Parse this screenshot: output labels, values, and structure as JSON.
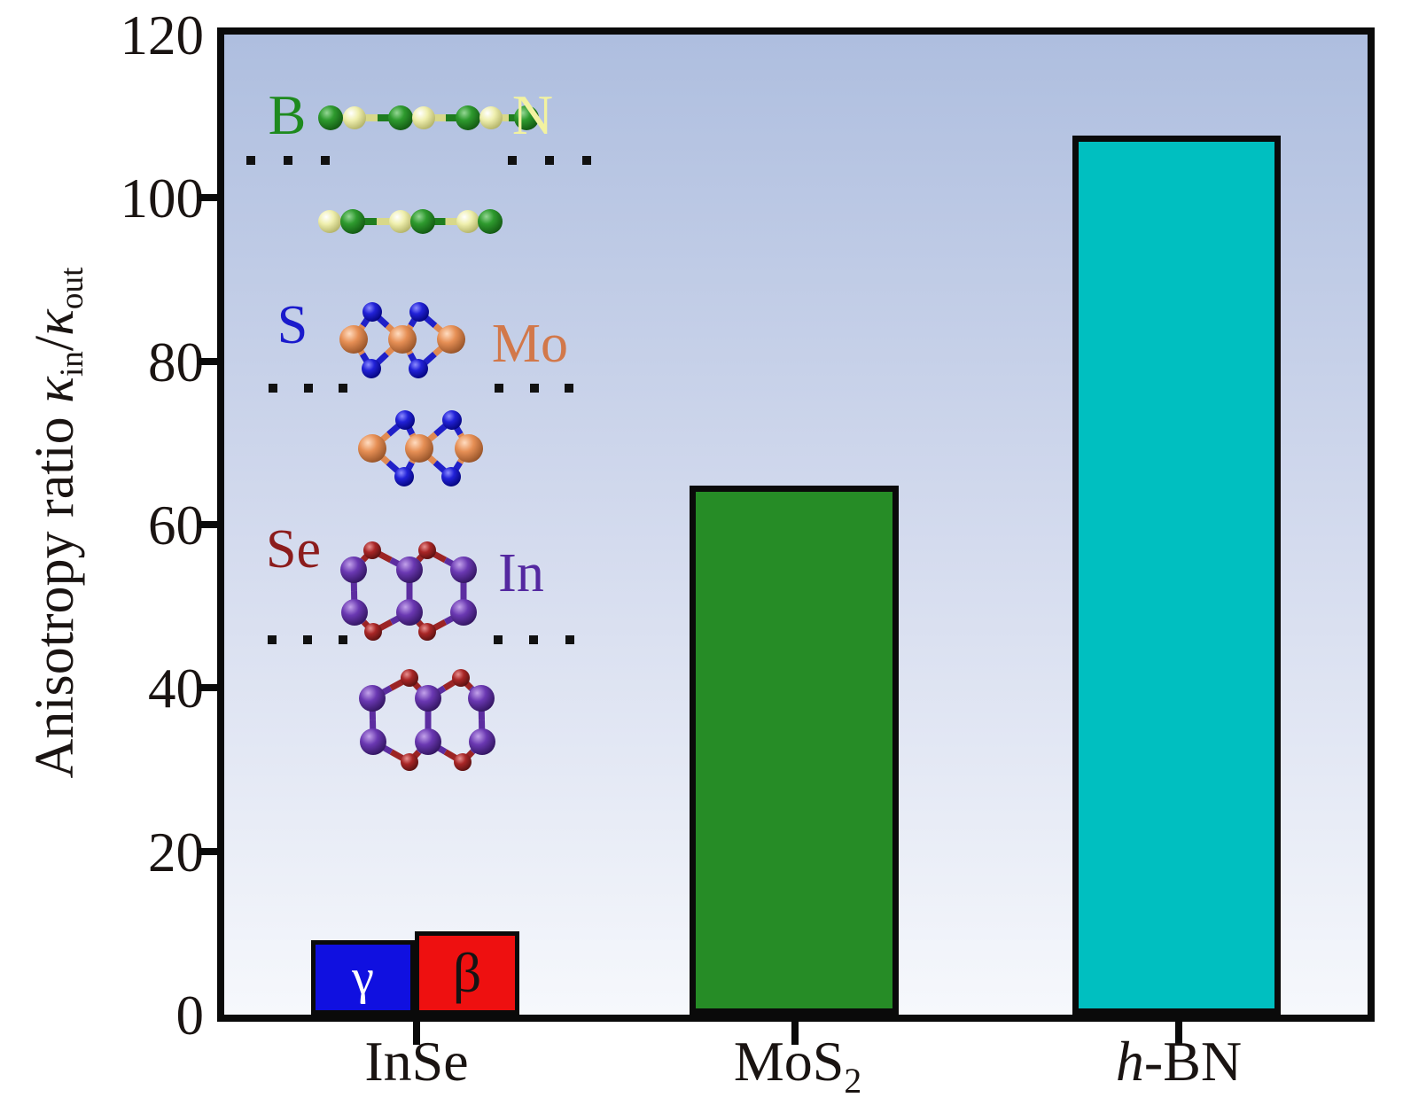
{
  "page": {
    "background": "#ffffff"
  },
  "y_axis": {
    "title": "Anisotropy ratio",
    "kappa": "κ",
    "sub_in": "in",
    "slash": "/",
    "sub_out": "out",
    "tick_labels": [
      "0",
      "20",
      "40",
      "60",
      "80",
      "100",
      "120"
    ]
  },
  "x_axis": {
    "labels": [
      {
        "text": "InSe"
      },
      {
        "main": "MoS",
        "sub": "2"
      },
      {
        "italic": "h",
        "rest": "-BN"
      }
    ]
  },
  "chart_data": {
    "type": "bar",
    "title": "",
    "xlabel": "",
    "ylabel": "Anisotropy ratio κ_in/κ_out",
    "ylim": [
      0,
      120
    ],
    "yticks": [
      0,
      20,
      40,
      60,
      80,
      100,
      120
    ],
    "grid": false,
    "legend": "none",
    "categories": [
      "InSe",
      "MoS2",
      "h-BN"
    ],
    "bars": [
      {
        "category": "InSe",
        "series": "γ-InSe",
        "label": "γ",
        "value": 9.1,
        "color": "#1010e0",
        "label_color": "#ffffff"
      },
      {
        "category": "InSe",
        "series": "β-InSe",
        "label": "β",
        "value": 10.2,
        "color": "#ee1010",
        "label_color": "#141414"
      },
      {
        "category": "MoS2",
        "series": "MoS2",
        "label": "",
        "value": 64.8,
        "color": "#268c26",
        "label_color": ""
      },
      {
        "category": "h-BN",
        "series": "h-BN",
        "label": "",
        "value": 107.6,
        "color": "#00bfc0",
        "label_color": ""
      }
    ],
    "background_gradient": [
      "#aebedf",
      "#f6f8fc"
    ],
    "axis_color": "#0a0a0a"
  },
  "insets": {
    "hbn": {
      "label_b": "B",
      "label_n": "N",
      "b_text_color": "#1e8a1e",
      "n_text_color": "#f2f2a0",
      "b_atom_color": "#1f7d1f",
      "n_atom_color": "#d8d88a"
    },
    "mos2": {
      "label_s": "S",
      "label_mo": "Mo",
      "s_text_color": "#1a1acc",
      "mo_text_color": "#d2784a",
      "s_atom_color": "#2020c8",
      "mo_atom_color": "#e08a52"
    },
    "inse": {
      "label_se": "Se",
      "label_in": "In",
      "se_text_color": "#8c1c1c",
      "in_text_color": "#5428a0",
      "se_atom_color": "#9c2424",
      "in_atom_color": "#5c2da0"
    }
  }
}
